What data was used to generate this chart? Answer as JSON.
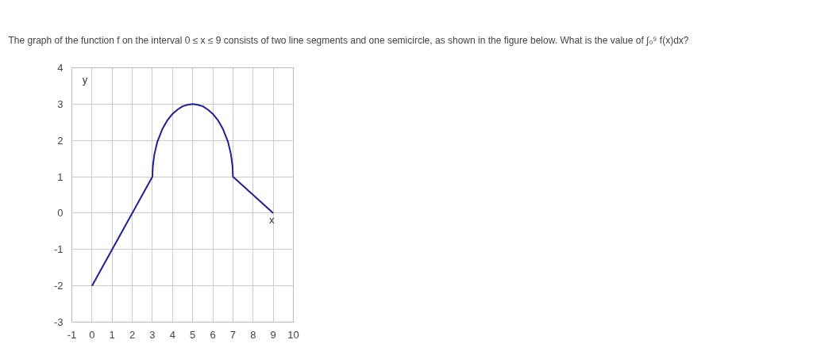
{
  "chart_data": {
    "type": "line",
    "title": "The graph of the function f on the interval 0 ≤ x ≤ 9 consists of two line segments and one semicircle, as shown in the figure below. What is the value of ∫₀⁹ f(x)dx?",
    "xlabel": "x",
    "ylabel": "y",
    "x": [
      0,
      3,
      3.02,
      3.1,
      3.25,
      3.5,
      3.75,
      4,
      4.25,
      4.5,
      4.75,
      5,
      5.25,
      5.5,
      5.75,
      6,
      6.25,
      6.5,
      6.75,
      6.9,
      6.98,
      7,
      9
    ],
    "series": [
      {
        "color": "#1f1f9a",
        "values": [
          -2,
          1,
          1.28,
          1.62,
          1.97,
          2.32,
          2.56,
          2.73,
          2.85,
          2.94,
          2.98,
          3,
          2.98,
          2.94,
          2.85,
          2.73,
          2.56,
          2.32,
          1.97,
          1.62,
          1.28,
          1,
          0
        ]
      }
    ],
    "xlim": [
      -1,
      10
    ],
    "xticks": [
      -1,
      0,
      1,
      2,
      3,
      4,
      5,
      6,
      7,
      8,
      9,
      10
    ],
    "ylim": [
      -3,
      4
    ],
    "yticks": [
      -3,
      -2,
      -1,
      0,
      1,
      2,
      3,
      4
    ],
    "grid": true,
    "marker": "none",
    "line_style": "solid"
  }
}
